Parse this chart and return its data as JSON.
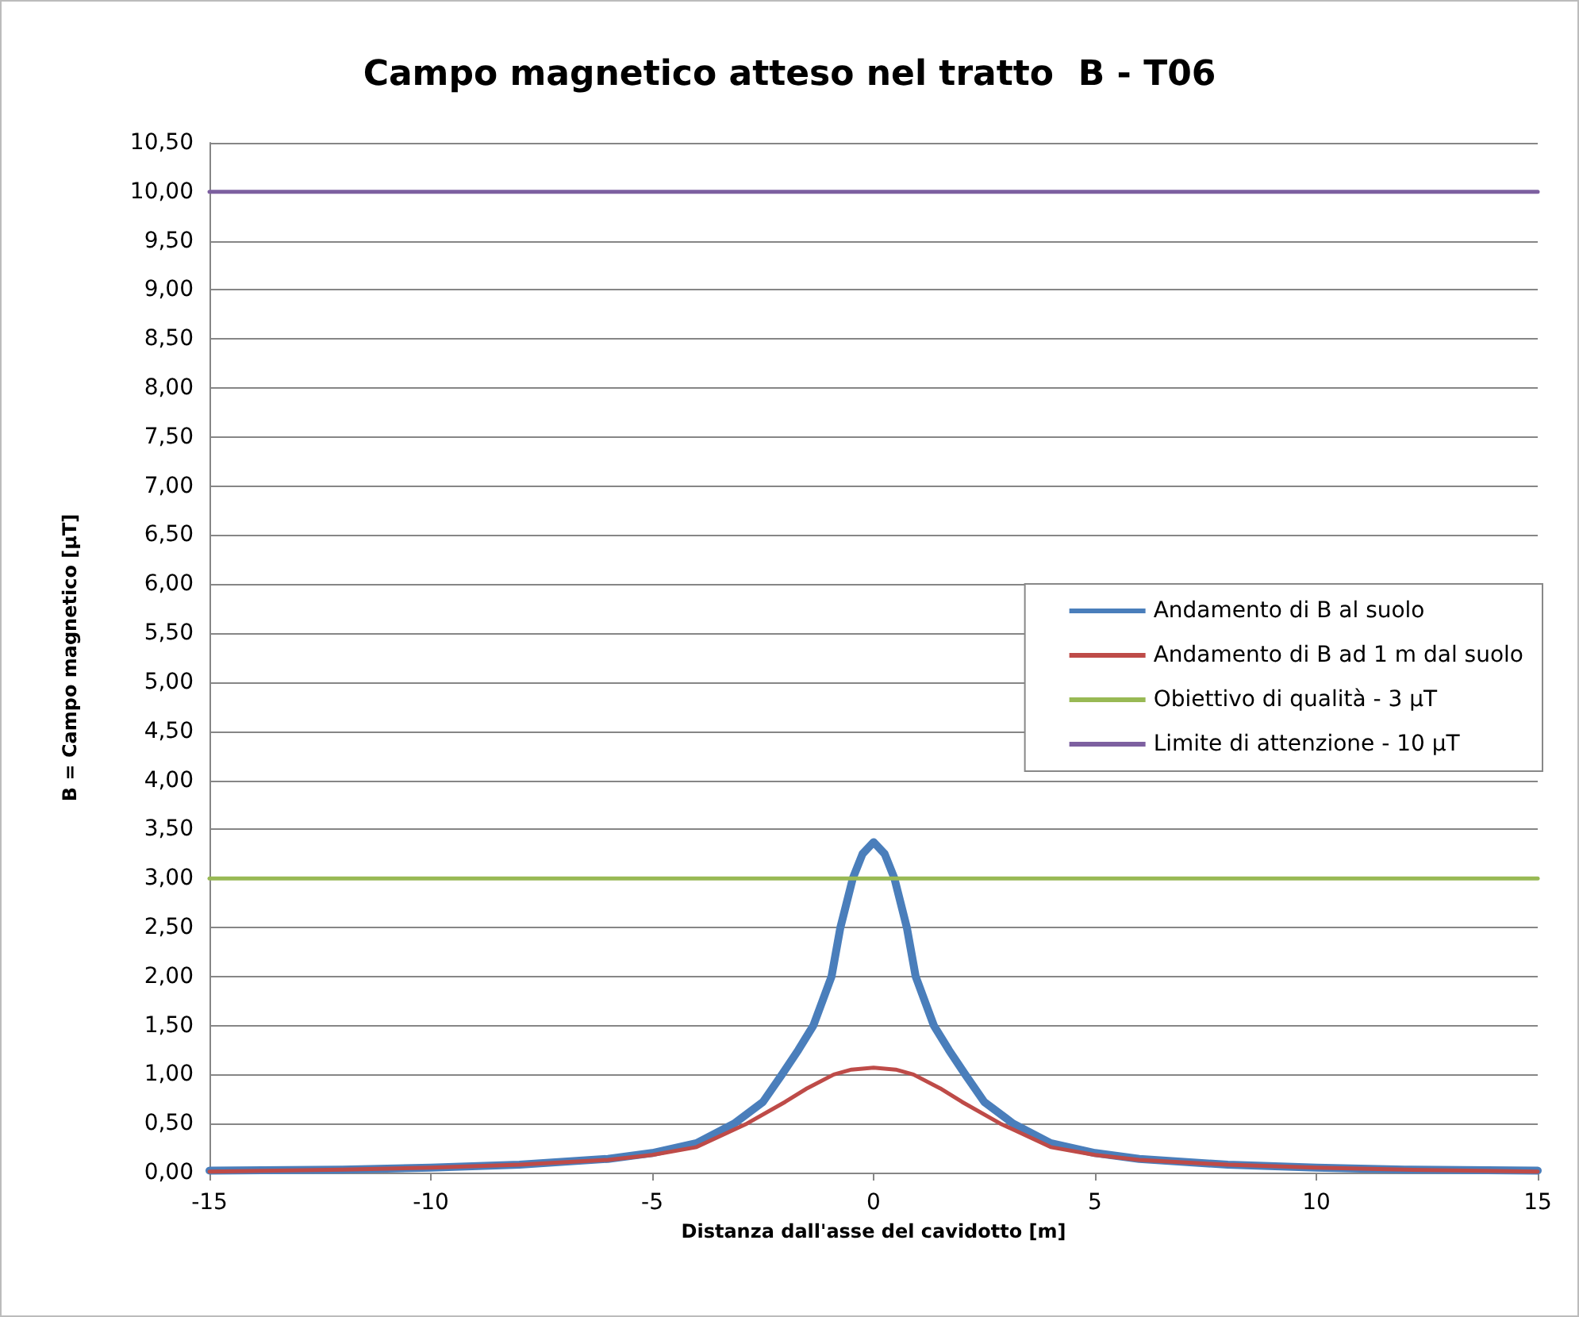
{
  "chart_data": {
    "type": "line",
    "title": "Campo magnetico atteso nel tratto  B - T06",
    "xlabel": "Distanza dall'asse del cavidotto [m]",
    "ylabel": "B = Campo magnetico [µT]",
    "series": [
      {
        "name": "Andamento di B al suolo",
        "color": "#4a7ebb",
        "x": [
          -15,
          -12,
          -10,
          -8,
          -6,
          -5,
          -4,
          -3.15,
          -2.5,
          -2.07,
          -1.7,
          -1.36,
          -0.95,
          -0.75,
          -0.47,
          -0.25,
          0,
          0.25,
          0.47,
          0.75,
          0.95,
          1.36,
          1.7,
          2.07,
          2.5,
          3.15,
          4,
          5,
          6,
          8,
          10,
          12,
          15
        ],
        "values": [
          0.02,
          0.03,
          0.05,
          0.08,
          0.14,
          0.2,
          0.3,
          0.5,
          0.72,
          1.0,
          1.25,
          1.5,
          2.0,
          2.5,
          3.0,
          3.25,
          3.37,
          3.25,
          3.0,
          2.5,
          2.0,
          1.5,
          1.25,
          1.0,
          0.72,
          0.5,
          0.3,
          0.2,
          0.14,
          0.08,
          0.05,
          0.03,
          0.02
        ]
      },
      {
        "name": "Andamento di B ad 1 m dal suolo",
        "color": "#be4b48",
        "x": [
          -15,
          -12,
          -10,
          -8,
          -6,
          -5,
          -4,
          -2.86,
          -2,
          -1.5,
          -0.9,
          -0.5,
          0,
          0.5,
          0.9,
          1.5,
          2,
          2.86,
          4,
          5,
          6,
          8,
          10,
          12,
          15
        ],
        "values": [
          0.01,
          0.03,
          0.05,
          0.08,
          0.13,
          0.18,
          0.26,
          0.5,
          0.72,
          0.86,
          1.0,
          1.05,
          1.07,
          1.05,
          1.0,
          0.86,
          0.72,
          0.5,
          0.26,
          0.18,
          0.13,
          0.08,
          0.05,
          0.03,
          0.01
        ]
      },
      {
        "name": "Obiettivo di qualità - 3 µT",
        "color": "#98b954",
        "x": [
          -15,
          15
        ],
        "values": [
          3,
          3
        ]
      },
      {
        "name": "Limite di attenzione - 10 µT",
        "color": "#7d60a0",
        "x": [
          -15,
          15
        ],
        "values": [
          10,
          10
        ]
      }
    ],
    "xlim": [
      -15,
      15
    ],
    "xticks": [
      -15,
      -10,
      -5,
      0,
      5,
      10,
      15
    ],
    "ylim": [
      0,
      10.5
    ],
    "yticks": [
      {
        "value": 0,
        "label": "0,00"
      },
      {
        "value": 0.5,
        "label": "0,50"
      },
      {
        "value": 1,
        "label": "1,00"
      },
      {
        "value": 1.5,
        "label": "1,50"
      },
      {
        "value": 2,
        "label": "2,00"
      },
      {
        "value": 2.5,
        "label": "2,50"
      },
      {
        "value": 3,
        "label": "3,00"
      },
      {
        "value": 3.5,
        "label": "3,50"
      },
      {
        "value": 4,
        "label": "4,00"
      },
      {
        "value": 4.5,
        "label": "4,50"
      },
      {
        "value": 5,
        "label": "5,00"
      },
      {
        "value": 5.5,
        "label": "5,50"
      },
      {
        "value": 6,
        "label": "6,00"
      },
      {
        "value": 6.5,
        "label": "6,50"
      },
      {
        "value": 7,
        "label": "7,00"
      },
      {
        "value": 7.5,
        "label": "7,50"
      },
      {
        "value": 8,
        "label": "8,00"
      },
      {
        "value": 8.5,
        "label": "8,50"
      },
      {
        "value": 9,
        "label": "9,00"
      },
      {
        "value": 9.5,
        "label": "9,50"
      },
      {
        "value": 10,
        "label": "10,00"
      },
      {
        "value": 10.5,
        "label": "10,50"
      }
    ],
    "grid": "y",
    "legend": "right",
    "marker": "none",
    "line_style": "solid"
  }
}
